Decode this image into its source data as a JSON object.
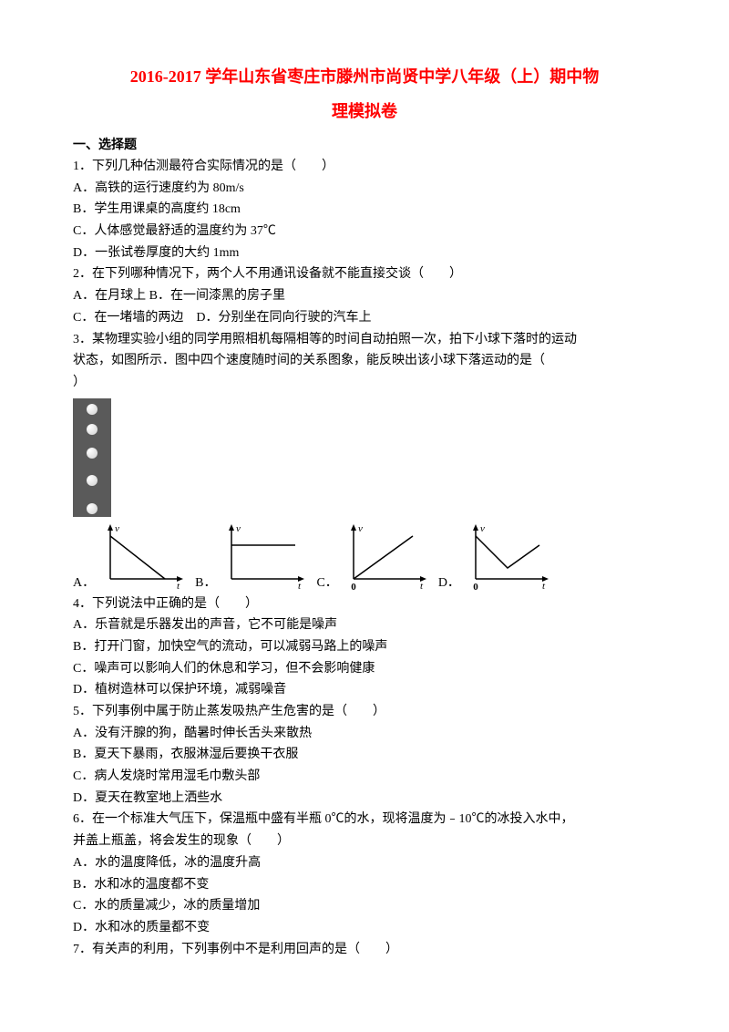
{
  "title_line1": "2016-2017 学年山东省枣庄市滕州市尚贤中学八年级（上）期中物",
  "title_line2": "理模拟卷",
  "section1_header": "一、选择题",
  "q1": {
    "text": "1．下列几种估测最符合实际情况的是（　　）",
    "a": "A．高铁的运行速度约为 80m/s",
    "b": "B．学生用课桌的高度约 18cm",
    "c": "C．人体感觉最舒适的温度约为 37℃",
    "d": "D．一张试卷厚度的大约 1mm"
  },
  "q2": {
    "text": "2．在下列哪种情况下，两个人不用通讯设备就不能直接交谈（　　）",
    "ab": "A．在月球上 B．在一间漆黑的房子里",
    "cd": "C．在一堵墙的两边　D．分别坐在同向行驶的汽车上"
  },
  "q3": {
    "text1": "3．某物理实验小组的同学用照相机每隔相等的时间自动拍照一次，拍下小球下落时的运动",
    "text2": "状态，如图所示．图中四个速度随时间的关系图象，能反映出该小球下落运动的是（",
    "text3": "）",
    "labels": {
      "a": "A．",
      "b": "B．",
      "c": "C．",
      "d": "D．"
    },
    "ball_positions": [
      6,
      28,
      54,
      84,
      115
    ],
    "graph_style": {
      "axis_color": "#000000",
      "line_color": "#000000",
      "axis_width": 1.5,
      "line_width": 1.5,
      "arrow_size": 5
    }
  },
  "q4": {
    "text": "4．下列说法中正确的是（　　）",
    "a": "A．乐音就是乐器发出的声音，它不可能是噪声",
    "b": "B．打开门窗，加快空气的流动，可以减弱马路上的噪声",
    "c": "C．噪声可以影响人们的休息和学习，但不会影响健康",
    "d": "D．植树造林可以保护环境，减弱噪音"
  },
  "q5": {
    "text": "5．下列事例中属于防止蒸发吸热产生危害的是（　　）",
    "a": "A．没有汗腺的狗，酷暑时伸长舌头来散热",
    "b": "B．夏天下暴雨，衣服淋湿后要换干衣服",
    "c": "C．病人发烧时常用湿毛巾敷头部",
    "d": "D．夏天在教室地上洒些水"
  },
  "q6": {
    "text1": "6．在一个标准大气压下，保温瓶中盛有半瓶 0℃的水，现将温度为﹣10℃的冰投入水中，",
    "text2": "并盖上瓶盖，将会发生的现象（　　）",
    "a": "A．水的温度降低，冰的温度升高",
    "b": "B．水和冰的温度都不变",
    "c": "C．水的质量减少，冰的质量增加",
    "d": "D．水和冰的质量都不变"
  },
  "q7": {
    "text": "7．有关声的利用，下列事例中不是利用回声的是（　　）"
  }
}
